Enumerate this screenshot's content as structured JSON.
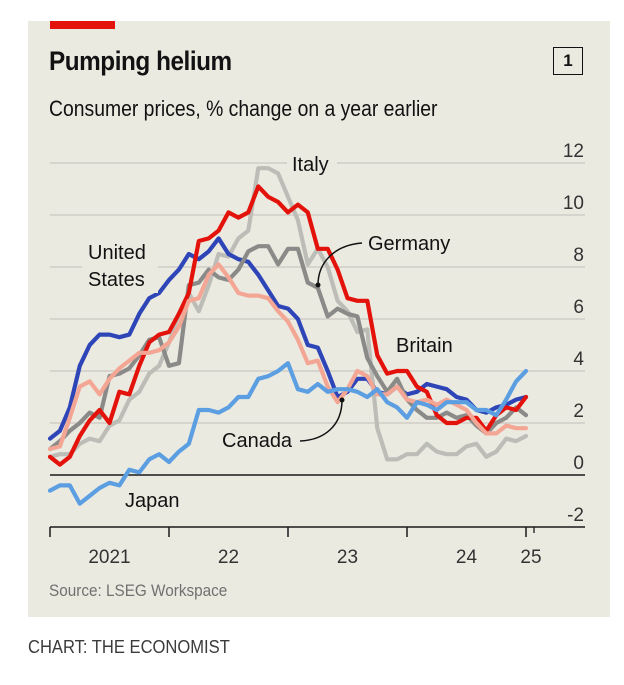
{
  "header": {
    "title": "Pumping helium",
    "chart_number": "1",
    "subtitle": "Consumer prices, % change on a year earlier"
  },
  "footer": {
    "source": "Source: LSEG Workspace",
    "credit": "CHART: THE ECONOMIST"
  },
  "colors": {
    "accent_red_tag": "#e3120b",
    "panel_background": "#ebeae1"
  },
  "chart_data": {
    "type": "line",
    "title": "Pumping helium",
    "subtitle": "Consumer prices, % change on a year earlier",
    "xlabel": "",
    "ylabel": "",
    "ylim": [
      -2,
      12
    ],
    "yticks": [
      12,
      10,
      8,
      6,
      4,
      2,
      0,
      -2
    ],
    "ytick_side": "right",
    "grid": true,
    "x_start": "2021-01",
    "x_end": "2025-01",
    "x_frequency": "monthly",
    "xticks": [
      {
        "label": "2021",
        "at": 2021.0
      },
      {
        "label": "22",
        "at": 2022.0
      },
      {
        "label": "23",
        "at": 2023.0
      },
      {
        "label": "24",
        "at": 2024.0
      },
      {
        "label": "25",
        "at": 2025.0
      }
    ],
    "series": [
      {
        "name": "Italy",
        "label": "Italy",
        "color": "#bdbdb8",
        "values": [
          0.7,
          0.8,
          0.8,
          1.2,
          1.4,
          1.3,
          1.9,
          2.1,
          2.9,
          3.2,
          3.9,
          4.2,
          5.1,
          6.2,
          7.0,
          6.3,
          7.3,
          8.5,
          8.4,
          9.1,
          9.4,
          11.8,
          11.8,
          11.6,
          10.7,
          9.8,
          8.1,
          8.7,
          8.0,
          6.7,
          6.3,
          5.5,
          5.6,
          1.8,
          0.6,
          0.6,
          0.8,
          0.8,
          1.2,
          0.9,
          0.8,
          0.8,
          1.1,
          1.2,
          0.7,
          0.9,
          1.4,
          1.3,
          1.5
        ]
      },
      {
        "name": "United States",
        "label": "United States",
        "color": "#2e45b8",
        "values": [
          1.4,
          1.7,
          2.6,
          4.2,
          5.0,
          5.4,
          5.4,
          5.3,
          5.4,
          6.2,
          6.8,
          7.0,
          7.5,
          7.9,
          8.5,
          8.3,
          8.6,
          9.1,
          8.5,
          8.3,
          8.2,
          7.7,
          7.1,
          6.5,
          6.4,
          6.0,
          5.0,
          4.9,
          4.0,
          3.0,
          3.2,
          3.7,
          3.7,
          3.2,
          3.1,
          3.4,
          3.1,
          3.2,
          3.5,
          3.4,
          3.3,
          3.0,
          2.9,
          2.5,
          2.4,
          2.6,
          2.7,
          2.9,
          3.0
        ]
      },
      {
        "name": "Germany",
        "label": "Germany",
        "color": "#8a8a88",
        "values": [
          1.0,
          1.3,
          1.7,
          2.0,
          2.4,
          2.2,
          3.8,
          3.9,
          4.1,
          4.6,
          5.2,
          5.3,
          4.2,
          4.3,
          7.3,
          7.4,
          7.9,
          7.6,
          7.5,
          7.9,
          8.6,
          8.8,
          8.8,
          8.1,
          8.7,
          8.7,
          7.4,
          7.2,
          6.1,
          6.4,
          6.2,
          6.1,
          4.5,
          3.8,
          3.2,
          3.7,
          2.9,
          2.5,
          2.2,
          2.2,
          2.4,
          2.2,
          2.3,
          1.9,
          1.6,
          2.0,
          2.2,
          2.6,
          2.3
        ]
      },
      {
        "name": "Britain",
        "label": "Britain",
        "color": "#e3120b",
        "values": [
          0.7,
          0.4,
          0.7,
          1.5,
          2.1,
          2.5,
          2.0,
          3.2,
          3.1,
          4.2,
          5.1,
          5.4,
          5.5,
          6.2,
          7.0,
          9.0,
          9.1,
          9.4,
          10.1,
          9.9,
          10.1,
          11.1,
          10.7,
          10.5,
          10.1,
          10.4,
          10.1,
          8.7,
          8.7,
          7.9,
          6.8,
          6.7,
          6.7,
          4.6,
          3.9,
          4.0,
          4.0,
          3.4,
          3.2,
          2.3,
          2.0,
          2.0,
          2.2,
          2.2,
          1.7,
          2.3,
          2.6,
          2.5,
          3.0
        ]
      },
      {
        "name": "Canada",
        "label": "Canada",
        "color": "#f4a695",
        "values": [
          1.0,
          1.1,
          2.2,
          3.4,
          3.6,
          3.1,
          3.7,
          4.1,
          4.4,
          4.7,
          4.7,
          4.8,
          5.1,
          5.7,
          6.7,
          6.8,
          7.7,
          8.1,
          7.6,
          7.0,
          6.9,
          6.9,
          6.8,
          6.3,
          5.9,
          5.2,
          4.3,
          4.4,
          3.4,
          2.8,
          3.3,
          4.0,
          3.8,
          3.1,
          3.1,
          3.4,
          2.9,
          2.8,
          2.9,
          2.7,
          2.9,
          2.7,
          2.5,
          2.0,
          1.6,
          1.6,
          1.9,
          1.8,
          1.8
        ]
      },
      {
        "name": "Japan",
        "label": "Japan",
        "color": "#5b9ee1",
        "values": [
          -0.6,
          -0.4,
          -0.4,
          -1.1,
          -0.8,
          -0.5,
          -0.3,
          -0.4,
          0.2,
          0.1,
          0.6,
          0.8,
          0.5,
          0.9,
          1.2,
          2.5,
          2.5,
          2.4,
          2.6,
          3.0,
          3.0,
          3.7,
          3.8,
          4.0,
          4.3,
          3.3,
          3.2,
          3.5,
          3.2,
          3.3,
          3.3,
          3.2,
          3.0,
          3.3,
          2.8,
          2.6,
          2.2,
          2.8,
          2.7,
          2.5,
          2.8,
          2.8,
          2.8,
          2.5,
          2.5,
          2.3,
          2.9,
          3.6,
          4.0
        ]
      }
    ],
    "annotations": [
      {
        "text": "Italy",
        "series": "Italy"
      },
      {
        "text": "United States",
        "series": "United States"
      },
      {
        "text": "Germany",
        "series": "Germany",
        "leader_line": true
      },
      {
        "text": "Britain",
        "series": "Britain"
      },
      {
        "text": "Canada",
        "series": "Canada",
        "leader_line": true
      },
      {
        "text": "Japan",
        "series": "Japan"
      }
    ]
  }
}
